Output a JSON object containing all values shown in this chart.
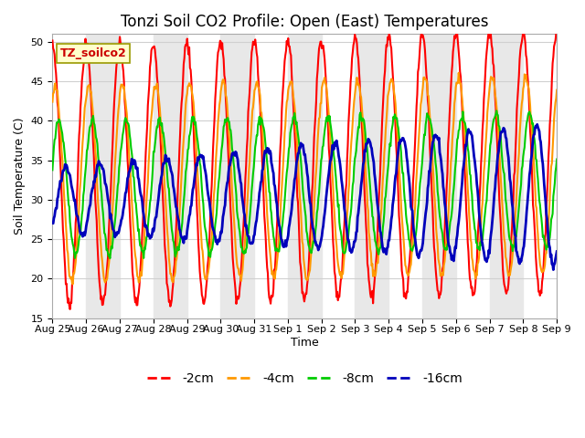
{
  "title": "Tonzi Soil CO2 Profile: Open (East) Temperatures",
  "ylabel": "Soil Temperature (C)",
  "xlabel": "Time",
  "annotation": "TZ_soilco2",
  "ylim": [
    15,
    51
  ],
  "yticks": [
    15,
    20,
    25,
    30,
    35,
    40,
    45,
    50
  ],
  "series": [
    "-2cm",
    "-4cm",
    "-8cm",
    "-16cm"
  ],
  "colors": [
    "#ff0000",
    "#ff9900",
    "#00cc00",
    "#0000bb"
  ],
  "linewidths": [
    1.5,
    1.5,
    1.5,
    2.0
  ],
  "x_tick_labels": [
    "Aug 25",
    "Aug 26",
    "Aug 27",
    "Aug 28",
    "Aug 29",
    "Aug 30",
    "Aug 31",
    "Sep 1",
    "Sep 2",
    "Sep 3",
    "Sep 4",
    "Sep 5",
    "Sep 6",
    "Sep 7",
    "Sep 8",
    "Sep 9"
  ],
  "grid_color": "#d0d0d0",
  "plot_bg": "#ffffff",
  "band_color": "#e8e8e8",
  "title_fontsize": 12,
  "label_fontsize": 9,
  "tick_fontsize": 8,
  "legend_fontsize": 10
}
